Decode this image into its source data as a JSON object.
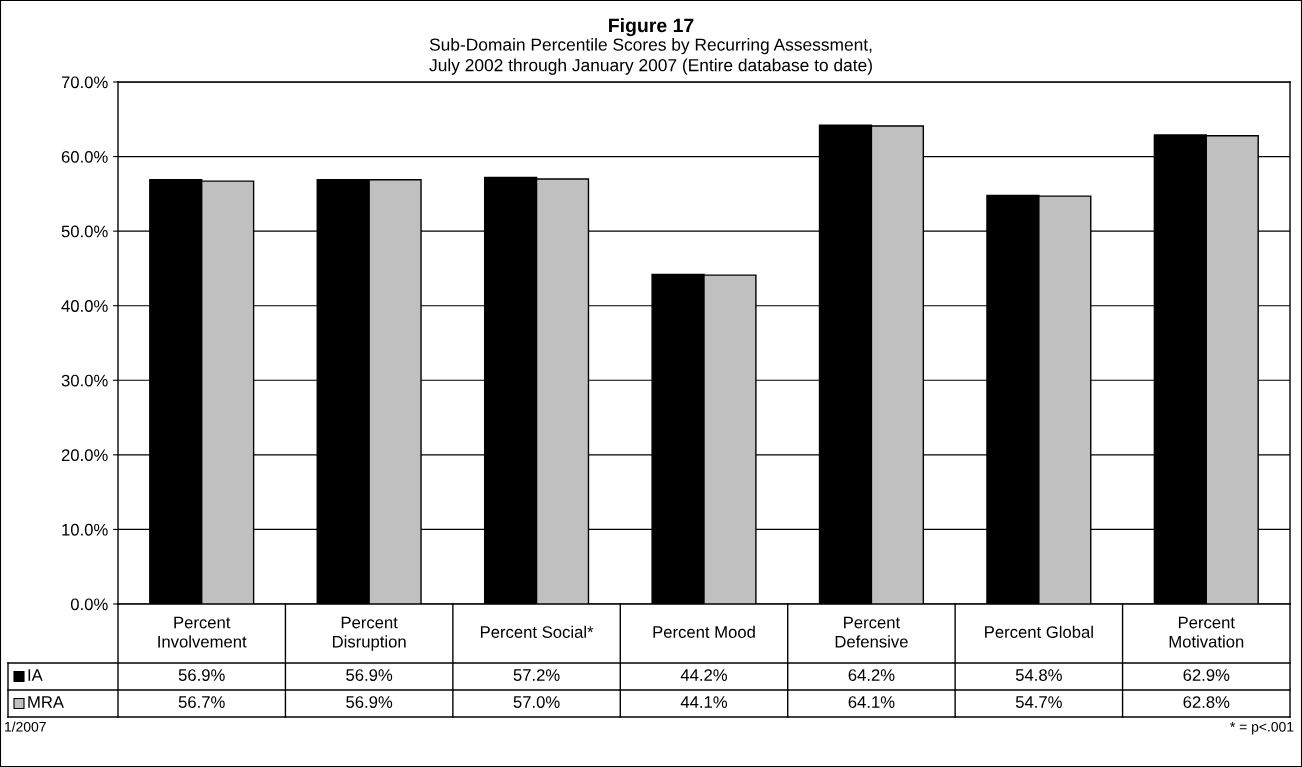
{
  "chart_data": {
    "type": "bar",
    "title": "Figure 17",
    "subtitle": "Sub-Domain Percentile Scores by Recurring Assessment,\nJuly 2002 through January 2007 (Entire database to date)",
    "categories": [
      "Percent\nInvolvement",
      "Percent\nDisruption",
      "Percent Social*",
      "Percent Mood",
      "Percent\nDefensive",
      "Percent Global",
      "Percent\nMotivation"
    ],
    "series": [
      {
        "name": "IA",
        "color": "#000000",
        "values": [
          56.9,
          56.9,
          57.2,
          44.2,
          64.2,
          54.8,
          62.9
        ],
        "value_labels": [
          "56.9%",
          "56.9%",
          "57.2%",
          "44.2%",
          "64.2%",
          "54.8%",
          "62.9%"
        ]
      },
      {
        "name": "MRA",
        "color": "#c0c0c0",
        "values": [
          56.7,
          56.9,
          57.0,
          44.1,
          64.1,
          54.7,
          62.8
        ],
        "value_labels": [
          "56.7%",
          "56.9%",
          "57.0%",
          "44.1%",
          "64.1%",
          "54.7%",
          "62.8%"
        ]
      }
    ],
    "ylim": [
      0,
      70
    ],
    "yticks": [
      {
        "value": 0,
        "label": "0.0%"
      },
      {
        "value": 10,
        "label": "10.0%"
      },
      {
        "value": 20,
        "label": "20.0%"
      },
      {
        "value": 30,
        "label": "30.0%"
      },
      {
        "value": 40,
        "label": "40.0%"
      },
      {
        "value": 50,
        "label": "50.0%"
      },
      {
        "value": 60,
        "label": "60.0%"
      },
      {
        "value": 70,
        "label": "70.0%"
      }
    ],
    "grid": "y",
    "legend": "bottom",
    "annotations": [
      "1/2007",
      "* = p<.001"
    ]
  }
}
